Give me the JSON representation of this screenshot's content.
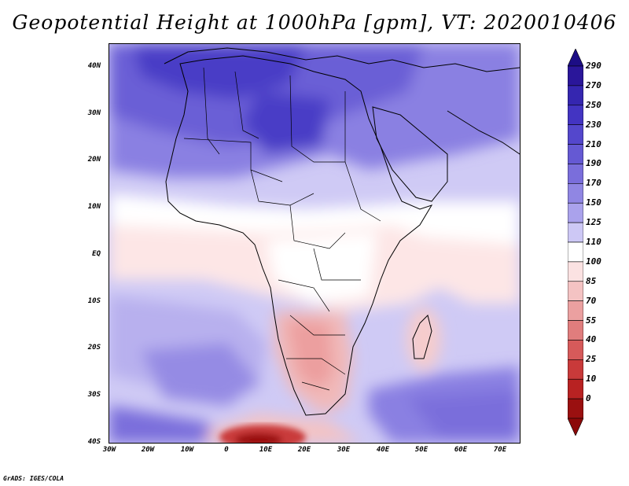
{
  "title": "Geopotential Height at 1000hPa [gpm], VT: 2020010406",
  "credit": "GrADS: IGES/COLA",
  "map": {
    "lat_labels": [
      "40N",
      "30N",
      "20N",
      "10N",
      "EQ",
      "10S",
      "20S",
      "30S",
      "40S"
    ],
    "lon_labels": [
      "30W",
      "20W",
      "10W",
      "0",
      "10E",
      "20E",
      "30E",
      "40E",
      "50E",
      "60E",
      "70E"
    ]
  },
  "colorbar": {
    "levels": [
      "290",
      "270",
      "250",
      "230",
      "210",
      "190",
      "170",
      "150",
      "125",
      "110",
      "100",
      "85",
      "70",
      "55",
      "40",
      "25",
      "10",
      "0"
    ],
    "colors": [
      "#2a169a",
      "#3526b0",
      "#4334c2",
      "#5447cc",
      "#6559d3",
      "#7a6edb",
      "#9086e3",
      "#aaa2ec",
      "#cdc8f5",
      "#ffffff",
      "#fbe2e2",
      "#f4c3c3",
      "#eba0a0",
      "#e07d7d",
      "#d65a5a",
      "#c93a3a",
      "#b82222",
      "#9a1010"
    ],
    "top_cap_color": "#1c0d85",
    "bottom_cap_color": "#8c0808"
  }
}
